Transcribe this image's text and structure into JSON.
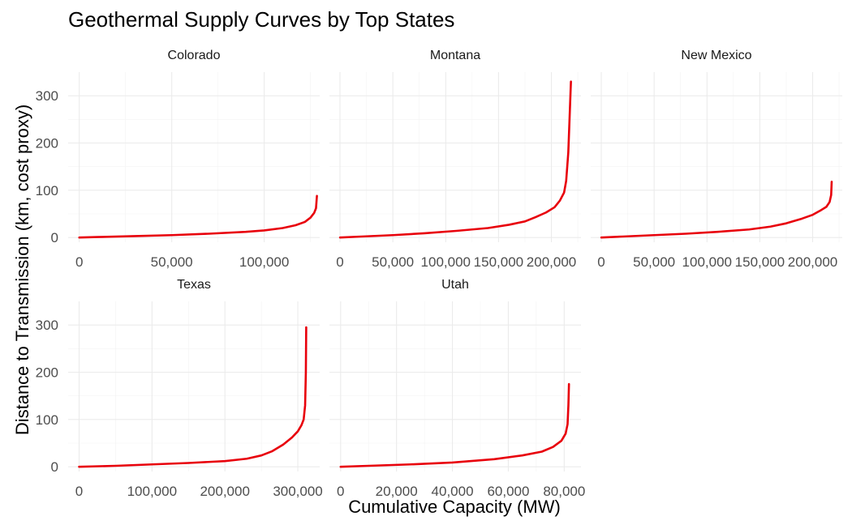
{
  "chart_data": {
    "type": "line",
    "title": "Geothermal Supply Curves by Top States",
    "xlabel": "Cumulative Capacity (MW)",
    "ylabel": "Distance to Transmission (km, cost proxy)",
    "ylim": [
      -10,
      350
    ],
    "y_ticks": [
      0,
      100,
      200,
      300
    ],
    "grid": true,
    "line_color": "#e8000b",
    "panels": [
      {
        "name": "Colorado",
        "xlim": [
          -6000,
          130000
        ],
        "x_ticks": [
          0,
          50000,
          100000
        ],
        "x_tick_labels": [
          "0",
          "50,000",
          "100,000"
        ],
        "x": [
          0,
          10000,
          30000,
          50000,
          70000,
          90000,
          100000,
          110000,
          117000,
          122000,
          125000,
          127000,
          128000,
          128500
        ],
        "y": [
          0,
          1,
          3,
          5,
          8,
          12,
          15,
          20,
          26,
          33,
          42,
          52,
          62,
          88
        ]
      },
      {
        "name": "Montana",
        "xlim": [
          -10000,
          228000
        ],
        "x_ticks": [
          0,
          50000,
          100000,
          150000,
          200000
        ],
        "x_tick_labels": [
          "0",
          "50,000",
          "100,000",
          "150,000",
          "200,000"
        ],
        "x": [
          0,
          20000,
          50000,
          80000,
          110000,
          140000,
          160000,
          175000,
          185000,
          195000,
          203000,
          208000,
          212000,
          214000,
          216000,
          217000,
          218000,
          218500
        ],
        "y": [
          0,
          2,
          5,
          9,
          14,
          20,
          27,
          34,
          43,
          53,
          64,
          78,
          95,
          120,
          180,
          240,
          300,
          330
        ]
      },
      {
        "name": "New Mexico",
        "xlim": [
          -10000,
          228000
        ],
        "x_ticks": [
          0,
          50000,
          100000,
          150000,
          200000
        ],
        "x_tick_labels": [
          "0",
          "50,000",
          "100,000",
          "150,000",
          "200,000"
        ],
        "x": [
          0,
          20000,
          50000,
          80000,
          110000,
          140000,
          160000,
          175000,
          190000,
          200000,
          208000,
          213000,
          216000,
          217500,
          218000
        ],
        "y": [
          0,
          2,
          5,
          8,
          12,
          17,
          23,
          30,
          40,
          48,
          58,
          65,
          75,
          90,
          118
        ]
      },
      {
        "name": "Texas",
        "xlim": [
          -15000,
          330000
        ],
        "x_ticks": [
          0,
          100000,
          200000,
          300000
        ],
        "x_tick_labels": [
          "0",
          "100,000",
          "200,000",
          "300,000"
        ],
        "x": [
          0,
          50000,
          100000,
          150000,
          200000,
          230000,
          250000,
          265000,
          280000,
          292000,
          300000,
          305000,
          308000,
          310000,
          311000,
          311500
        ],
        "y": [
          0,
          2,
          5,
          8,
          12,
          17,
          24,
          33,
          47,
          62,
          75,
          88,
          100,
          130,
          200,
          295
        ]
      },
      {
        "name": "Utah",
        "xlim": [
          -4000,
          86000
        ],
        "x_ticks": [
          0,
          20000,
          40000,
          60000,
          80000
        ],
        "x_tick_labels": [
          "0",
          "20,000",
          "40,000",
          "60,000",
          "80,000"
        ],
        "x": [
          0,
          10000,
          25000,
          40000,
          55000,
          65000,
          72000,
          76000,
          79000,
          80500,
          81200,
          81500,
          81700
        ],
        "y": [
          0,
          2,
          5,
          9,
          16,
          24,
          32,
          42,
          55,
          70,
          90,
          130,
          175
        ]
      }
    ]
  }
}
